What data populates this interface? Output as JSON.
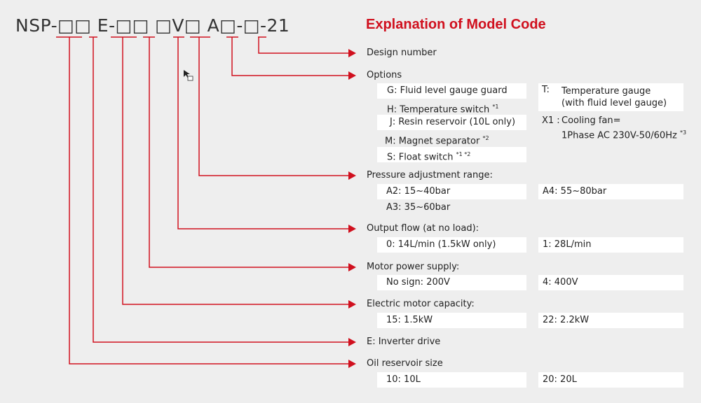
{
  "model_code": "NSP-□□ E-□□ □V□ A□-□-21",
  "title": "Explanation of Model Code",
  "accent_color": "#d0101e",
  "sections": {
    "design": {
      "label": "Design number"
    },
    "options": {
      "label": "Options",
      "left": [
        "G:  Fluid level gauge guard",
        "H:  Temperature switch",
        "J:  Resin reservoir (10L only)",
        "M:  Magnet separator",
        "S:  Float switch"
      ],
      "left_notes": [
        "",
        "*1",
        "",
        "*2",
        "*1 *2"
      ],
      "t_key": "T:",
      "t_line1": "Temperature gauge",
      "t_line2": "(with fluid level gauge)",
      "x1_key": "X1 :",
      "x1_line1": "Cooling fan=",
      "x1_line2": "1Phase AC 230V-50/60Hz",
      "x1_note": "*3"
    },
    "pressure": {
      "label": "Pressure adjustment range:",
      "a2": "A2: 15~40bar",
      "a4": "A4: 55~80bar",
      "a3": "A3: 35~60bar"
    },
    "flow": {
      "label": "Output flow (at no load):",
      "v0": "0: 14L/min (1.5kW only)",
      "v1": "1: 28L/min"
    },
    "power": {
      "label": "Motor power supply:",
      "v0": "No sign: 200V",
      "v1": "4: 400V"
    },
    "motor": {
      "label": "Electric motor capacity:",
      "v0": "15: 1.5kW",
      "v1": "22: 2.2kW"
    },
    "inverter": {
      "label": "E: Inverter drive"
    },
    "reservoir": {
      "label": "Oil reservoir size",
      "v0": "10: 10L",
      "v1": "20: 20L"
    }
  }
}
